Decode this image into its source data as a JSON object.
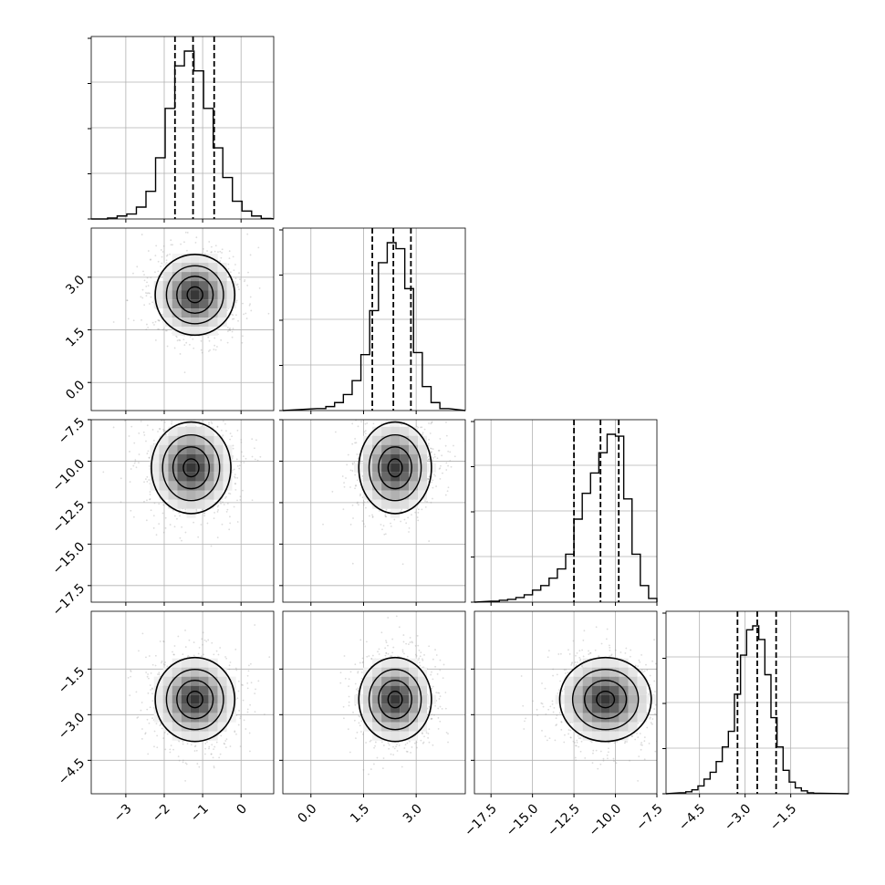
{
  "chart_data": {
    "type": "corner",
    "panels": 4,
    "grid": true,
    "quantiles": [
      0.16,
      0.5,
      0.84
    ],
    "params": [
      {
        "range": [
          -3.9,
          0.85
        ],
        "ticks": [
          -3,
          -2,
          -1,
          0
        ],
        "tick_labels": [
          "−3",
          "−2",
          "−1",
          "0"
        ],
        "quantile_values": [
          -1.72,
          -1.25,
          -0.7
        ],
        "hist_bins": [
          -3.6,
          -3.35,
          -3.1,
          -2.85,
          -2.6,
          -2.35,
          -2.1,
          -1.85,
          -1.6,
          -1.35,
          -1.1,
          -0.85,
          -0.6,
          -0.35,
          -0.1,
          0.15,
          0.4,
          0.65
        ],
        "hist_values": [
          0,
          1,
          3,
          5,
          12,
          28,
          62,
          112,
          155,
          170,
          150,
          112,
          72,
          42,
          18,
          8,
          3,
          0.5
        ]
      },
      {
        "range": [
          -0.8,
          4.4
        ],
        "ticks": [
          0.0,
          1.5,
          3.0
        ],
        "tick_labels": [
          "0.0",
          "1.5",
          "3.0"
        ],
        "quantile_values": [
          1.75,
          2.35,
          2.85
        ],
        "hist_bins": [
          0.3,
          0.55,
          0.8,
          1.05,
          1.3,
          1.55,
          1.8,
          2.05,
          2.3,
          2.55,
          2.8,
          3.05,
          3.3,
          3.55,
          3.8
        ],
        "hist_values": [
          2,
          4,
          8,
          16,
          30,
          56,
          100,
          148,
          168,
          162,
          122,
          58,
          24,
          8,
          2
        ]
      },
      {
        "range": [
          -18.5,
          -7.5
        ],
        "ticks": [
          -17.5,
          -15.0,
          -12.5,
          -10.0,
          -7.5
        ],
        "tick_labels": [
          "−17.5",
          "−15.0",
          "−12.5",
          "−10.0",
          "−7.5"
        ],
        "quantile_values": [
          -12.5,
          -10.9,
          -9.8
        ],
        "hist_bins": [
          -17.25,
          -16.75,
          -16.25,
          -15.75,
          -15.25,
          -14.75,
          -14.25,
          -13.75,
          -13.25,
          -12.75,
          -12.25,
          -11.75,
          -11.25,
          -10.75,
          -10.25,
          -9.75,
          -9.25,
          -8.75,
          -8.25,
          -7.75
        ],
        "hist_values": [
          1,
          2,
          3,
          5,
          8,
          13,
          18,
          26,
          36,
          52,
          90,
          118,
          140,
          162,
          182,
          180,
          112,
          52,
          18,
          4
        ]
      },
      {
        "range": [
          -5.6,
          0.4
        ],
        "ticks": [
          -4.5,
          -3.0,
          -1.5
        ],
        "tick_labels": [
          "−4.5",
          "−3.0",
          "−1.5"
        ],
        "quantile_values": [
          -3.25,
          -2.6,
          -1.98
        ],
        "hist_bins": [
          -5.05,
          -4.85,
          -4.65,
          -4.45,
          -4.25,
          -4.05,
          -3.85,
          -3.65,
          -3.45,
          -3.25,
          -3.05,
          -2.85,
          -2.65,
          -2.45,
          -2.25,
          -2.05,
          -1.85,
          -1.65,
          -1.45,
          -1.25,
          -1.05,
          -0.85,
          -0.65
        ],
        "hist_values": [
          1,
          2,
          4,
          8,
          15,
          22,
          33,
          48,
          64,
          102,
          142,
          168,
          172,
          158,
          122,
          78,
          48,
          24,
          12,
          6,
          3,
          1,
          0.5
        ]
      }
    ],
    "pairs": [
      {
        "row": 1,
        "col": 0,
        "x_center": -1.2,
        "y_center": 2.5,
        "x_sigma": 0.45,
        "y_sigma": 0.5
      },
      {
        "row": 2,
        "col": 0,
        "x_center": -1.3,
        "y_center": -10.4,
        "x_sigma": 0.45,
        "y_sigma": 1.2
      },
      {
        "row": 2,
        "col": 1,
        "x_center": 2.4,
        "y_center": -10.4,
        "x_sigma": 0.45,
        "y_sigma": 1.2
      },
      {
        "row": 3,
        "col": 0,
        "x_center": -1.2,
        "y_center": -2.5,
        "x_sigma": 0.45,
        "y_sigma": 0.6
      },
      {
        "row": 3,
        "col": 1,
        "x_center": 2.4,
        "y_center": -2.5,
        "x_sigma": 0.45,
        "y_sigma": 0.6
      },
      {
        "row": 3,
        "col": 2,
        "x_center": -10.6,
        "y_center": -2.5,
        "x_sigma": 1.2,
        "y_sigma": 0.6
      }
    ]
  }
}
